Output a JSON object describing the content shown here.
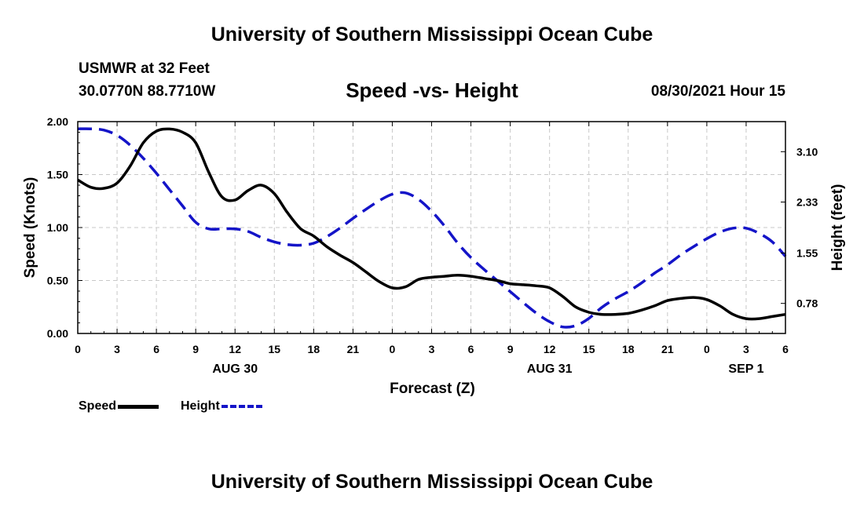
{
  "header": {
    "title_top": "University of Southern Mississippi Ocean Cube",
    "title_bottom": "University of Southern Mississippi Ocean Cube",
    "station": "USMWR at 32 Feet",
    "coords": "30.0770N  88.7710W",
    "datetime": "08/30/2021 Hour 15"
  },
  "chart_data": {
    "type": "line",
    "title": "Speed -vs- Height",
    "xlabel": "Forecast (Z)",
    "ylabel": "Speed (Knots)",
    "y2label": "Height (feet)",
    "xlim": [
      0,
      54
    ],
    "ylim": [
      0,
      2.0
    ],
    "y2lim": [
      0.32,
      3.56
    ],
    "x_ticks": [
      0,
      3,
      6,
      9,
      12,
      15,
      18,
      21,
      24,
      27,
      30,
      33,
      36,
      39,
      42,
      45,
      48,
      51,
      54
    ],
    "x_tick_labels": [
      "0",
      "3",
      "6",
      "9",
      "12",
      "15",
      "18",
      "21",
      "0",
      "3",
      "6",
      "9",
      "12",
      "15",
      "18",
      "21",
      "0",
      "3",
      "6"
    ],
    "date_labels": [
      {
        "x": 12,
        "label": "AUG 30"
      },
      {
        "x": 36,
        "label": "AUG 31"
      },
      {
        "x": 51,
        "label": "SEP 1"
      }
    ],
    "y_ticks": [
      0,
      0.5,
      1.0,
      1.5,
      2.0
    ],
    "y_tick_labels": [
      "0.00",
      "0.50",
      "1.00",
      "1.50",
      "2.00"
    ],
    "y2_ticks": [
      0.78,
      1.55,
      2.33,
      3.1
    ],
    "y2_tick_labels": [
      "0.78",
      "1.55",
      "2.33",
      "3.10"
    ],
    "grid": true,
    "legend_position": "bottom-left",
    "series": [
      {
        "name": "Speed",
        "axis": "left",
        "color": "#000000",
        "style": "solid",
        "x": [
          0,
          1,
          2,
          3,
          4,
          5,
          6,
          7,
          8,
          9,
          10,
          11,
          12,
          13,
          14,
          15,
          16,
          17,
          18,
          19,
          20,
          21,
          22,
          23,
          24,
          25,
          26,
          27,
          28,
          29,
          30,
          31,
          32,
          33,
          34,
          35,
          36,
          37,
          38,
          39,
          40,
          41,
          42,
          43,
          44,
          45,
          46,
          47,
          48,
          49,
          50,
          51,
          52,
          53,
          54
        ],
        "values": [
          1.45,
          1.38,
          1.37,
          1.42,
          1.58,
          1.8,
          1.91,
          1.93,
          1.9,
          1.8,
          1.52,
          1.29,
          1.26,
          1.35,
          1.4,
          1.32,
          1.14,
          0.99,
          0.92,
          0.82,
          0.74,
          0.67,
          0.58,
          0.49,
          0.43,
          0.44,
          0.51,
          0.53,
          0.54,
          0.55,
          0.54,
          0.52,
          0.5,
          0.47,
          0.46,
          0.45,
          0.43,
          0.35,
          0.25,
          0.2,
          0.18,
          0.18,
          0.19,
          0.22,
          0.26,
          0.31,
          0.33,
          0.34,
          0.32,
          0.26,
          0.18,
          0.14,
          0.14,
          0.16,
          0.18
        ]
      },
      {
        "name": "Height",
        "axis": "right",
        "color": "#1414c8",
        "style": "dashed",
        "x": [
          0,
          1,
          2,
          3,
          4,
          5,
          6,
          7,
          8,
          9,
          10,
          11,
          12,
          13,
          14,
          15,
          16,
          17,
          18,
          19,
          20,
          21,
          22,
          23,
          24,
          25,
          26,
          27,
          28,
          29,
          30,
          31,
          32,
          33,
          34,
          35,
          36,
          37,
          38,
          39,
          40,
          41,
          42,
          43,
          44,
          45,
          46,
          47,
          48,
          49,
          50,
          51,
          52,
          53,
          54
        ],
        "values": [
          3.45,
          3.45,
          3.43,
          3.35,
          3.2,
          3.0,
          2.77,
          2.52,
          2.27,
          2.02,
          1.92,
          1.92,
          1.92,
          1.88,
          1.79,
          1.72,
          1.68,
          1.67,
          1.7,
          1.8,
          1.93,
          2.08,
          2.22,
          2.35,
          2.45,
          2.47,
          2.37,
          2.19,
          1.96,
          1.7,
          1.48,
          1.3,
          1.13,
          0.96,
          0.79,
          0.63,
          0.5,
          0.42,
          0.44,
          0.55,
          0.72,
          0.85,
          0.96,
          1.09,
          1.24,
          1.37,
          1.52,
          1.65,
          1.77,
          1.87,
          1.93,
          1.93,
          1.85,
          1.72,
          1.5
        ]
      }
    ]
  }
}
